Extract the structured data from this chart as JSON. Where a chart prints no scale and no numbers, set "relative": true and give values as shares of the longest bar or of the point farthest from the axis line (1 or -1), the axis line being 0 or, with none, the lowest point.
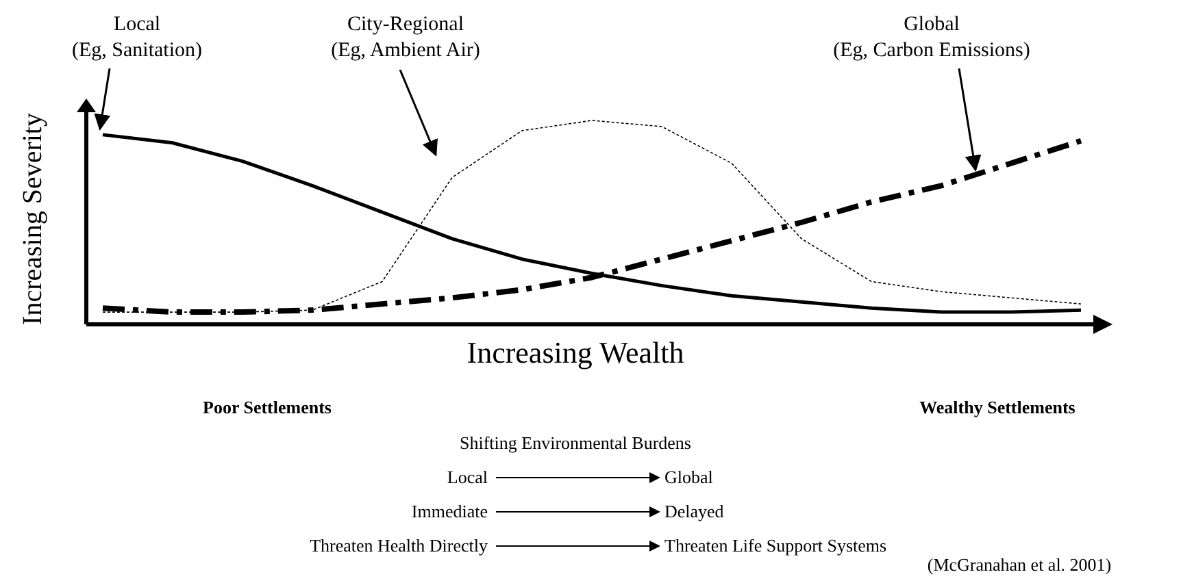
{
  "chart_data": {
    "type": "line",
    "relative": true,
    "xlabel": "Increasing Wealth",
    "ylabel": "Increasing Severity",
    "categories": [
      null,
      null,
      null,
      null,
      null,
      null,
      null,
      null,
      null,
      null,
      null,
      null,
      null,
      null,
      null
    ],
    "series": [
      {
        "color": "#000000",
        "line_style": "solid",
        "values": [
          0.93,
          0.89,
          0.8,
          0.68,
          0.55,
          0.42,
          0.32,
          0.25,
          0.19,
          0.14,
          0.11,
          0.08,
          0.06,
          0.06,
          0.07
        ]
      },
      {
        "color": "#000000",
        "line_style": "dotted",
        "values": [
          0.06,
          0.06,
          0.06,
          0.07,
          0.21,
          0.72,
          0.95,
          1,
          0.97,
          0.79,
          0.42,
          0.21,
          0.16,
          0.13,
          0.1
        ]
      },
      {
        "color": "#000000",
        "line_style": "dashed",
        "values": [
          0.08,
          0.06,
          0.06,
          0.07,
          0.1,
          0.13,
          0.17,
          0.23,
          0.32,
          0.41,
          0.5,
          0.6,
          0.68,
          0.79,
          0.9
        ]
      }
    ],
    "annotations": [
      "(Eg, Sanitation)",
      "(Eg, Ambient Air)",
      "(Eg, Carbon Emissions)",
      "Poor Settlements",
      "Wealthy Settlements",
      "Shifting Environmental Burdens",
      "Local",
      "Global",
      "Immediate",
      "Delayed",
      "Threaten Health Directly",
      "Threaten Life Support Systems",
      "(McGranahan et al. 2001)",
      "Local",
      "City-Regional",
      "Global"
    ]
  }
}
